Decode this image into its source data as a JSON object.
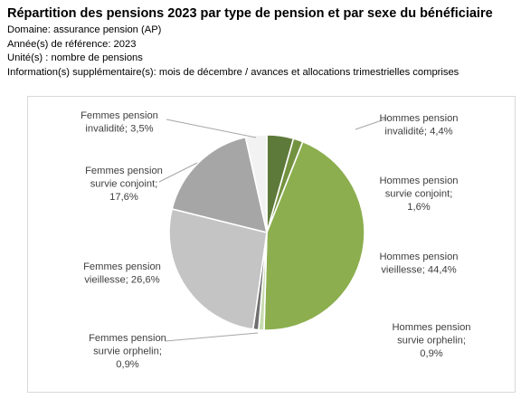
{
  "header": {
    "title": "Répartition des pensions 2023 par type de pension et par sexe du bénéficiaire",
    "lines": [
      "Domaine: assurance pension (AP)",
      "Année(s) de référence: 2023",
      "Unité(s) : nombre de pensions",
      "Information(s) supplémentaire(s): mois de décembre / avances et allocations trimestrielles comprises"
    ]
  },
  "chart_data": {
    "type": "pie",
    "title": "Répartition des pensions 2023 par type de pension et par sexe du bénéficiaire",
    "unit": "nombre de pensions",
    "start_angle_deg": 0,
    "direction": "clockwise",
    "slices": [
      {
        "label_lines": [
          "Hommes pension",
          "invalidité; 4,4%"
        ],
        "value": 4.4,
        "color": "#5e7a3a"
      },
      {
        "label_lines": [
          "Hommes pension",
          "survie conjoint;",
          "1,6%"
        ],
        "value": 1.6,
        "color": "#73923f"
      },
      {
        "label_lines": [
          "Hommes pension",
          "vieillesse; 44,4%"
        ],
        "value": 44.4,
        "color": "#8cae4e"
      },
      {
        "label_lines": [
          "Hommes pension",
          "survie orphelin;",
          "0,9%"
        ],
        "value": 0.9,
        "color": "#c8dbb0"
      },
      {
        "label_lines": [
          "Femmes pension",
          "survie orphelin;",
          "0,9%"
        ],
        "value": 0.9,
        "color": "#6e6e6e"
      },
      {
        "label_lines": [
          "Femmes pension",
          "vieillesse; 26,6%"
        ],
        "value": 26.6,
        "color": "#c4c4c4"
      },
      {
        "label_lines": [
          "Femmes pension",
          "survie conjoint;",
          "17,6%"
        ],
        "value": 17.6,
        "color": "#a6a6a6"
      },
      {
        "label_lines": [
          "Femmes pension",
          "invalidité; 3,5%"
        ],
        "value": 3.5,
        "color": "#f2f2f2"
      }
    ],
    "colors": {
      "leader": "#a6a6a6",
      "label_text": "#404040",
      "frame_border": "#d9d9d9"
    }
  }
}
